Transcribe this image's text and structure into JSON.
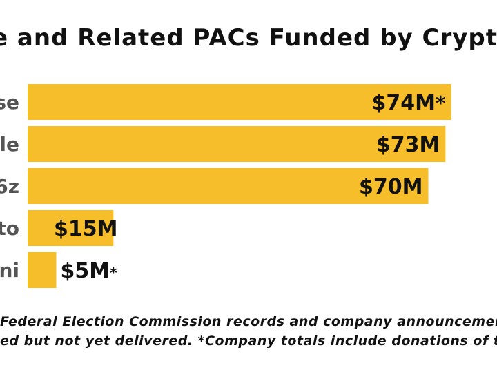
{
  "title": "e and Related PACs Funded by Crypto Giant",
  "chart_data": {
    "type": "bar",
    "orientation": "horizontal",
    "categories": [
      "se",
      "le",
      "6z",
      "to",
      "ni"
    ],
    "values": [
      74,
      73,
      70,
      15,
      5
    ],
    "value_labels": [
      "$74M",
      "$73M",
      "$70M",
      "$15M",
      "$5M"
    ],
    "asterisks": [
      "*",
      "",
      "",
      "",
      "*"
    ],
    "unit": "M",
    "xlim": [
      0,
      82
    ],
    "grid": false,
    "bar_color": "#f7be2b",
    "label_color": "#111111"
  },
  "notes": {
    "line1": "Federal Election Commission records and company announcements, includ",
    "line2": "ed but not yet delivered. *Company totals include donations of top executiv"
  }
}
